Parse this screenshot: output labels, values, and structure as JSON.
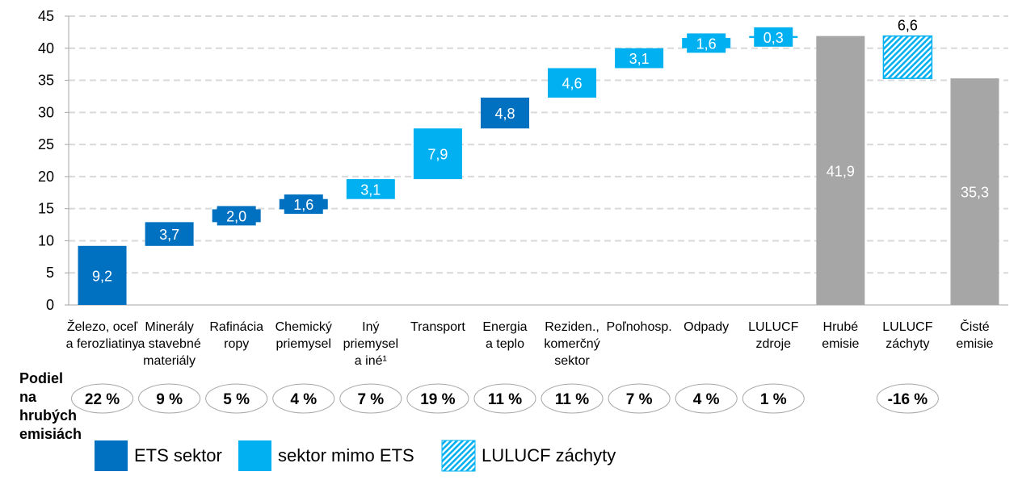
{
  "chart_data": {
    "type": "waterfall",
    "ylim": [
      0,
      45
    ],
    "yticks": [
      0,
      5,
      10,
      15,
      20,
      25,
      30,
      35,
      40,
      45
    ],
    "grid": true,
    "categories": [
      [
        "Železo, oceľ",
        "a ferozliatiny"
      ],
      [
        "Minerály",
        "a stavebné",
        "materiály"
      ],
      [
        "Rafinácia",
        "ropy"
      ],
      [
        "Chemický",
        "priemysel"
      ],
      [
        "Iný",
        "priemysel",
        "a iné¹"
      ],
      [
        "Transport"
      ],
      [
        "Energia",
        "a teplo"
      ],
      [
        "Reziden.,",
        "komerčný",
        "sektor"
      ],
      [
        "Poľnohosp."
      ],
      [
        "Odpady"
      ],
      [
        "LULUCF",
        "zdroje"
      ],
      [
        "Hrubé",
        "emisie"
      ],
      [
        "LULUCF",
        "záchyty"
      ],
      [
        "Čisté",
        "emisie"
      ]
    ],
    "values": [
      9.2,
      3.7,
      2.0,
      1.6,
      3.1,
      7.9,
      4.8,
      4.6,
      3.1,
      1.6,
      0.3,
      41.9,
      -6.6,
      35.3
    ],
    "value_labels": [
      "9,2",
      "3,7",
      "2,0",
      "1,6",
      "3,1",
      "7,9",
      "4,8",
      "4,6",
      "3,1",
      "1,6",
      "0,3",
      "41,9",
      "6,6",
      "35,3"
    ],
    "bar_kind": [
      "ets",
      "ets",
      "ets",
      "ets",
      "non_ets",
      "non_ets",
      "ets",
      "non_ets",
      "non_ets",
      "non_ets",
      "non_ets",
      "total",
      "lulucf",
      "total"
    ],
    "share_title": [
      "Podiel",
      "na",
      "hrubých",
      "emisiách"
    ],
    "shares": [
      "22 %",
      "9 %",
      "5 %",
      "4 %",
      "7 %",
      "19 %",
      "11 %",
      "11 %",
      "7 %",
      "4 %",
      "1 %",
      "",
      "-16 %",
      ""
    ],
    "legend": [
      {
        "key": "ets",
        "label": "ETS sektor"
      },
      {
        "key": "non_ets",
        "label": "sektor mimo ETS"
      },
      {
        "key": "lulucf",
        "label": "LULUCF záchyty"
      }
    ],
    "legend_placement": "bottom",
    "colors": {
      "ets": "#0070C0",
      "non_ets": "#00B0F0",
      "total": "#A6A6A6",
      "lulucf": "#00B0F0",
      "grid": "#D9D9D9"
    }
  }
}
